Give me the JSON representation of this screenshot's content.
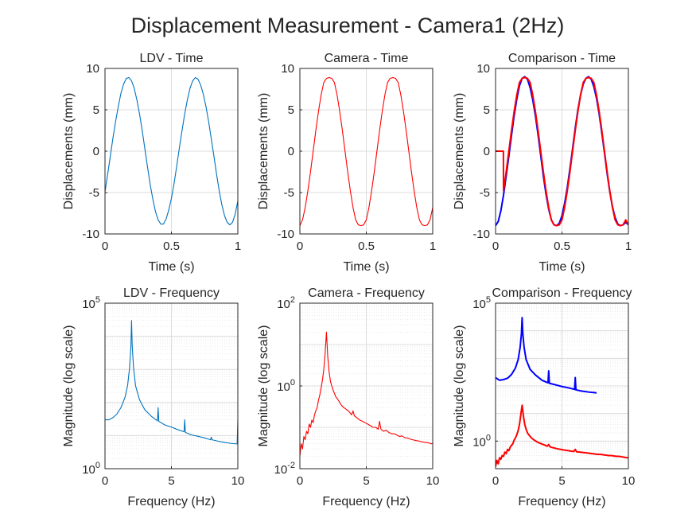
{
  "figure": {
    "title": "Displacement Measurement - Camera1 (2Hz)"
  },
  "colors": {
    "ldv": "#0072bd",
    "camera": "#ff0000",
    "comparison_ldv": "#0000ff",
    "axis": "#262626",
    "grid": "#dcdcdc"
  },
  "chart_data": [
    {
      "id": "ldv-time",
      "type": "line",
      "title": "LDV - Time",
      "xlabel": "Time (s)",
      "ylabel": "Displacements (mm)",
      "xlim": [
        0,
        1
      ],
      "ylim": [
        -10,
        10
      ],
      "xticks": [
        0,
        0.5,
        1
      ],
      "xtick_labels": [
        "0",
        "0.5",
        "1"
      ],
      "yticks": [
        -10,
        -5,
        0,
        5,
        10
      ],
      "ytick_labels": [
        "-10",
        "-5",
        "0",
        "5",
        "10"
      ],
      "grid": true,
      "series": [
        {
          "color": "#0072bd",
          "x": [
            0,
            0.02,
            0.04,
            0.06,
            0.08,
            0.1,
            0.12,
            0.14,
            0.16,
            0.18,
            0.2,
            0.22,
            0.24,
            0.26,
            0.28,
            0.3,
            0.32,
            0.34,
            0.36,
            0.38,
            0.4,
            0.42,
            0.44,
            0.46,
            0.48,
            0.5,
            0.52,
            0.54,
            0.56,
            0.58,
            0.6,
            0.62,
            0.64,
            0.66,
            0.68,
            0.7,
            0.72,
            0.74,
            0.76,
            0.78,
            0.8,
            0.82,
            0.84,
            0.86,
            0.88,
            0.9,
            0.92,
            0.94,
            0.96,
            0.98,
            1.0
          ],
          "y": [
            -4.9,
            -2.8,
            -0.6,
            1.6,
            3.6,
            5.4,
            7.0,
            8.1,
            8.8,
            8.9,
            8.5,
            7.6,
            6.2,
            4.5,
            2.5,
            0.3,
            -1.9,
            -4.0,
            -5.8,
            -7.3,
            -8.3,
            -8.8,
            -8.8,
            -8.2,
            -7.1,
            -5.7,
            -3.9,
            -1.8,
            0.4,
            2.5,
            4.5,
            6.2,
            7.6,
            8.5,
            8.9,
            8.7,
            8.0,
            6.9,
            5.4,
            3.6,
            1.5,
            -0.6,
            -2.8,
            -4.8,
            -6.5,
            -7.8,
            -8.6,
            -8.9,
            -8.6,
            -7.6,
            -6.0
          ]
        }
      ]
    },
    {
      "id": "camera-time",
      "type": "line",
      "title": "Camera - Time",
      "xlabel": "Time (s)",
      "ylabel": "Displacements (mm)",
      "xlim": [
        0,
        1
      ],
      "ylim": [
        -10,
        10
      ],
      "xticks": [
        0,
        0.5,
        1
      ],
      "xtick_labels": [
        "0",
        "0.5",
        "1"
      ],
      "yticks": [
        -10,
        -5,
        0,
        5,
        10
      ],
      "ytick_labels": [
        "-10",
        "-5",
        "0",
        "5",
        "10"
      ],
      "grid": true,
      "series": [
        {
          "color": "#ff0000",
          "x": [
            0,
            0.02,
            0.04,
            0.06,
            0.08,
            0.1,
            0.12,
            0.14,
            0.16,
            0.18,
            0.2,
            0.22,
            0.24,
            0.26,
            0.28,
            0.3,
            0.32,
            0.34,
            0.36,
            0.38,
            0.4,
            0.42,
            0.44,
            0.46,
            0.48,
            0.5,
            0.52,
            0.54,
            0.56,
            0.58,
            0.6,
            0.62,
            0.64,
            0.66,
            0.68,
            0.7,
            0.72,
            0.74,
            0.76,
            0.78,
            0.8,
            0.82,
            0.84,
            0.86,
            0.88,
            0.9,
            0.92,
            0.94,
            0.96,
            0.98,
            1.0
          ],
          "y": [
            -9.0,
            -8.3,
            -6.8,
            -4.8,
            -2.5,
            0.0,
            2.5,
            4.8,
            6.8,
            8.3,
            8.8,
            8.9,
            8.8,
            8.3,
            6.8,
            4.8,
            2.5,
            0.0,
            -2.5,
            -4.8,
            -6.8,
            -8.3,
            -8.9,
            -9.0,
            -8.9,
            -8.3,
            -6.8,
            -4.8,
            -2.5,
            0.0,
            2.5,
            4.8,
            6.8,
            8.3,
            8.8,
            8.9,
            8.8,
            8.3,
            6.8,
            4.8,
            2.5,
            0.0,
            -2.5,
            -4.8,
            -6.8,
            -8.3,
            -8.9,
            -9.0,
            -8.9,
            -8.3,
            -6.8
          ]
        }
      ]
    },
    {
      "id": "comparison-time",
      "type": "line",
      "title": "Comparison - Time",
      "xlabel": "Time (s)",
      "ylabel": "Displacements (mm)",
      "xlim": [
        0,
        1
      ],
      "ylim": [
        -10,
        10
      ],
      "xticks": [
        0,
        0.5,
        1
      ],
      "xtick_labels": [
        "0",
        "0.5",
        "1"
      ],
      "yticks": [
        -10,
        -5,
        0,
        5,
        10
      ],
      "ytick_labels": [
        "-10",
        "-5",
        "0",
        "5",
        "10"
      ],
      "grid": true,
      "series": [
        {
          "color": "#0000ff",
          "x": [
            0,
            0.02,
            0.04,
            0.06,
            0.08,
            0.1,
            0.12,
            0.14,
            0.16,
            0.18,
            0.2,
            0.22,
            0.24,
            0.26,
            0.28,
            0.3,
            0.32,
            0.34,
            0.36,
            0.38,
            0.4,
            0.42,
            0.44,
            0.46,
            0.48,
            0.5,
            0.52,
            0.54,
            0.56,
            0.58,
            0.6,
            0.62,
            0.64,
            0.66,
            0.68,
            0.7,
            0.72,
            0.74,
            0.76,
            0.78,
            0.8,
            0.82,
            0.84,
            0.86,
            0.88,
            0.9,
            0.92,
            0.94,
            0.96,
            0.98,
            1.0
          ],
          "y": [
            -9.0,
            -8.5,
            -7.2,
            -5.3,
            -3.0,
            -0.6,
            1.9,
            4.3,
            6.3,
            7.9,
            8.8,
            9.0,
            8.7,
            7.7,
            6.2,
            4.3,
            2.0,
            -0.5,
            -3.0,
            -5.2,
            -7.0,
            -8.3,
            -8.9,
            -9.0,
            -8.7,
            -7.8,
            -6.3,
            -4.4,
            -2.1,
            0.3,
            2.8,
            5.0,
            6.8,
            8.1,
            8.8,
            9.0,
            8.7,
            7.8,
            6.4,
            4.5,
            2.2,
            -0.2,
            -2.7,
            -4.9,
            -6.7,
            -8.0,
            -8.8,
            -9.0,
            -8.9,
            -8.6,
            -8.9
          ]
        },
        {
          "color": "#ff0000",
          "x": [
            0,
            0.02,
            0.04,
            0.059,
            0.06,
            0.08,
            0.1,
            0.12,
            0.14,
            0.16,
            0.18,
            0.2,
            0.22,
            0.24,
            0.26,
            0.28,
            0.3,
            0.32,
            0.34,
            0.36,
            0.38,
            0.4,
            0.42,
            0.44,
            0.46,
            0.48,
            0.5,
            0.52,
            0.54,
            0.56,
            0.58,
            0.6,
            0.62,
            0.64,
            0.66,
            0.68,
            0.7,
            0.72,
            0.74,
            0.76,
            0.78,
            0.8,
            0.82,
            0.84,
            0.86,
            0.88,
            0.9,
            0.92,
            0.94,
            0.96,
            0.98,
            1.0
          ],
          "y": [
            0,
            0,
            0,
            0,
            -4.8,
            -2.5,
            0.0,
            2.5,
            4.8,
            6.8,
            8.3,
            8.8,
            8.9,
            8.8,
            8.3,
            6.8,
            4.8,
            2.5,
            0.0,
            -2.5,
            -4.8,
            -6.8,
            -8.3,
            -8.9,
            -9.0,
            -8.9,
            -8.3,
            -6.8,
            -4.8,
            -2.5,
            0.0,
            2.5,
            4.8,
            6.8,
            8.3,
            8.8,
            8.9,
            8.8,
            8.3,
            6.8,
            4.8,
            2.5,
            0.0,
            -2.5,
            -4.8,
            -6.8,
            -8.3,
            -8.9,
            -9.0,
            -8.9,
            -8.3,
            -8.9
          ]
        }
      ]
    },
    {
      "id": "ldv-frequency",
      "type": "line",
      "title": "LDV - Frequency",
      "xlabel": "Frequency (Hz)",
      "ylabel": "Magnitude (log scale)",
      "xlim": [
        0,
        10
      ],
      "ylim": [
        1,
        100000
      ],
      "yscale": "log",
      "xticks": [
        0,
        5,
        10
      ],
      "xtick_labels": [
        "0",
        "5",
        "10"
      ],
      "yticks": [
        1,
        100000
      ],
      "ytick_labels": [
        "10^0",
        "10^5"
      ],
      "grid": true,
      "series": [
        {
          "color": "#0072bd",
          "x": [
            0,
            0.3,
            0.6,
            0.9,
            1.2,
            1.5,
            1.7,
            1.85,
            1.95,
            2.0,
            2.05,
            2.15,
            2.3,
            2.6,
            3.0,
            3.5,
            3.95,
            4.0,
            4.05,
            4.5,
            5.0,
            5.5,
            5.95,
            6.0,
            6.05,
            6.5,
            7.0,
            7.5,
            7.95,
            8.0,
            8.05,
            8.5,
            9.0,
            9.5,
            9.95,
            10.0
          ],
          "y": [
            30,
            30,
            35,
            45,
            70,
            140,
            320,
            1100,
            5000,
            30000,
            5000,
            1100,
            320,
            120,
            60,
            38,
            28,
            70,
            27,
            21,
            18,
            15,
            13,
            30,
            12.5,
            10.5,
            9.5,
            8.5,
            7.5,
            9,
            7.5,
            6.8,
            6.2,
            5.8,
            5.6,
            30
          ]
        }
      ]
    },
    {
      "id": "camera-frequency",
      "type": "line",
      "title": "Camera - Frequency",
      "xlabel": "Frequency (Hz)",
      "ylabel": "Magnitude (log scale)",
      "xlim": [
        0,
        10
      ],
      "ylim": [
        0.01,
        100
      ],
      "yscale": "log",
      "xticks": [
        0,
        5,
        10
      ],
      "xtick_labels": [
        "0",
        "5",
        "10"
      ],
      "yticks": [
        0.01,
        1,
        100
      ],
      "ytick_labels": [
        "10^-2",
        "10^0",
        "10^2"
      ],
      "grid": true,
      "series": [
        {
          "color": "#ff0000",
          "x": [
            0,
            0.1,
            0.2,
            0.3,
            0.4,
            0.5,
            0.6,
            0.7,
            0.8,
            0.9,
            1.0,
            1.1,
            1.2,
            1.3,
            1.4,
            1.5,
            1.6,
            1.7,
            1.8,
            1.9,
            2.0,
            2.1,
            2.2,
            2.3,
            2.4,
            2.5,
            2.7,
            2.9,
            3.1,
            3.3,
            3.5,
            3.7,
            3.9,
            4.0,
            4.1,
            4.3,
            4.5,
            4.7,
            4.9,
            5.1,
            5.3,
            5.5,
            5.7,
            5.9,
            6.0,
            6.1,
            6.3,
            6.5,
            6.7,
            6.9,
            7.1,
            7.3,
            7.5,
            7.7,
            7.9,
            8.1,
            8.3,
            8.5,
            8.7,
            8.9,
            9.1,
            9.3,
            9.5,
            9.7,
            9.9,
            10.0
          ],
          "y": [
            0.02,
            0.04,
            0.03,
            0.06,
            0.05,
            0.08,
            0.07,
            0.12,
            0.1,
            0.15,
            0.13,
            0.2,
            0.25,
            0.3,
            0.45,
            0.6,
            0.9,
            1.4,
            2.5,
            6,
            20,
            5,
            2.2,
            1.3,
            1.0,
            0.8,
            0.55,
            0.45,
            0.35,
            0.3,
            0.27,
            0.24,
            0.2,
            0.25,
            0.19,
            0.17,
            0.15,
            0.14,
            0.13,
            0.12,
            0.11,
            0.1,
            0.1,
            0.09,
            0.14,
            0.09,
            0.08,
            0.085,
            0.075,
            0.07,
            0.07,
            0.065,
            0.06,
            0.062,
            0.056,
            0.055,
            0.052,
            0.05,
            0.048,
            0.047,
            0.045,
            0.044,
            0.043,
            0.042,
            0.04,
            0.041
          ]
        }
      ]
    },
    {
      "id": "comparison-frequency",
      "type": "line",
      "title": "Comparison - Frequency",
      "xlabel": "Frequency (Hz)",
      "ylabel": "Magnitude (log scale)",
      "xlim": [
        0,
        10
      ],
      "ylim": [
        0.1,
        100000
      ],
      "yscale": "log",
      "xticks": [
        0,
        5,
        10
      ],
      "xtick_labels": [
        "0",
        "5",
        "10"
      ],
      "yticks": [
        1,
        100000
      ],
      "ytick_labels": [
        "10^0",
        "10^5"
      ],
      "grid": true,
      "series": [
        {
          "color": "#0000ff",
          "x": [
            0,
            0.3,
            0.6,
            0.9,
            1.2,
            1.5,
            1.7,
            1.85,
            1.95,
            2.0,
            2.05,
            2.15,
            2.3,
            2.6,
            3.0,
            3.5,
            3.95,
            4.0,
            4.05,
            4.5,
            5.0,
            5.5,
            5.95,
            6.0,
            6.05,
            6.5,
            7.0,
            7.5,
            7.6
          ],
          "y": [
            200,
            160,
            170,
            190,
            260,
            450,
            900,
            2500,
            8000,
            30000,
            8000,
            2500,
            900,
            400,
            250,
            160,
            130,
            350,
            125,
            110,
            95,
            85,
            75,
            200,
            72,
            65,
            60,
            57,
            55
          ]
        },
        {
          "color": "#ff0000",
          "x": [
            0,
            0.1,
            0.2,
            0.3,
            0.4,
            0.5,
            0.6,
            0.7,
            0.8,
            0.9,
            1.0,
            1.1,
            1.2,
            1.3,
            1.4,
            1.5,
            1.6,
            1.7,
            1.8,
            1.9,
            2.0,
            2.1,
            2.2,
            2.3,
            2.4,
            2.5,
            2.7,
            2.9,
            3.1,
            3.3,
            3.5,
            3.7,
            3.9,
            4.0,
            4.1,
            4.3,
            4.5,
            4.7,
            4.9,
            5.1,
            5.3,
            5.5,
            5.7,
            5.9,
            6.0,
            6.1,
            6.3,
            6.5,
            6.7,
            6.9,
            7.1,
            7.3,
            7.5,
            7.7,
            7.9,
            8.1,
            8.3,
            8.5,
            8.7,
            8.9,
            9.1,
            9.3,
            9.5,
            9.7,
            9.9,
            10.0
          ],
          "y": [
            0.12,
            0.2,
            0.15,
            0.25,
            0.22,
            0.3,
            0.28,
            0.4,
            0.35,
            0.5,
            0.45,
            0.6,
            0.7,
            0.8,
            1.1,
            1.3,
            1.7,
            2.4,
            4,
            9,
            20,
            8,
            4,
            2.7,
            2.0,
            1.7,
            1.3,
            1.1,
            0.95,
            0.85,
            0.78,
            0.72,
            0.65,
            0.75,
            0.62,
            0.58,
            0.55,
            0.52,
            0.5,
            0.48,
            0.46,
            0.45,
            0.43,
            0.42,
            0.5,
            0.41,
            0.4,
            0.39,
            0.38,
            0.37,
            0.36,
            0.35,
            0.34,
            0.33,
            0.33,
            0.32,
            0.31,
            0.3,
            0.3,
            0.29,
            0.28,
            0.28,
            0.27,
            0.26,
            0.25,
            0.25
          ]
        }
      ]
    }
  ]
}
